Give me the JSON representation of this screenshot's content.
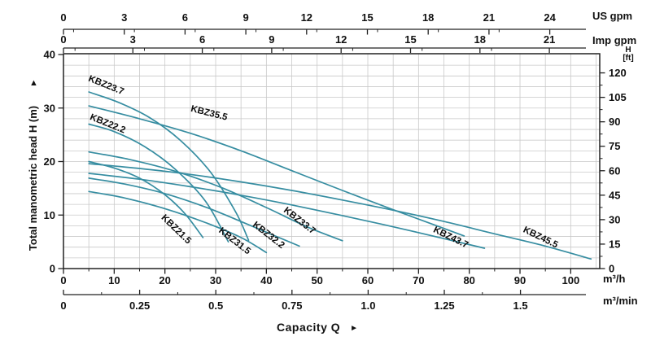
{
  "colors": {
    "curve": "#368da1",
    "grid": "#c9c9c9",
    "axis": "#222222",
    "text": "#111111"
  },
  "labels": {
    "us_gpm": "US gpm",
    "imp_gpm": "Imp gpm",
    "m3h": "m³/h",
    "m3min": "m³/min",
    "h": "H",
    "ft": "[ft]",
    "capacity": "Capacity Q",
    "capacity_arrow": "►",
    "ylabel": "Total manometric head H (m)",
    "y_arrow": "▲"
  },
  "chart_data": {
    "type": "line",
    "title": "",
    "xlabel": "Capacity Q",
    "ylabel": "Total manometric head H (m)",
    "grid": true,
    "legend_position": "none",
    "x_axes": [
      {
        "id": "us_gpm",
        "label": "US gpm",
        "ticks": [
          0,
          3,
          6,
          9,
          12,
          15,
          18,
          21,
          24
        ]
      },
      {
        "id": "imp_gpm",
        "label": "Imp gpm",
        "ticks": [
          0,
          3,
          6,
          9,
          12,
          15,
          18,
          21
        ]
      },
      {
        "id": "m3h",
        "label": "m³/h",
        "ticks": [
          0,
          10,
          20,
          30,
          40,
          50,
          60,
          70,
          80,
          90,
          100
        ],
        "range": [
          0,
          105.7
        ]
      },
      {
        "id": "m3min",
        "label": "m³/min",
        "ticks": [
          "0",
          "0.25",
          "0.5",
          "0.75",
          "1.0",
          "1.25",
          "1.5"
        ]
      }
    ],
    "y_axes": [
      {
        "id": "m",
        "label": "H (m)",
        "ticks": [
          0,
          10,
          20,
          30,
          40
        ],
        "range": [
          0,
          40
        ]
      },
      {
        "id": "ft",
        "label": "H [ft]",
        "ticks": [
          0,
          15,
          30,
          45,
          60,
          75,
          90,
          105,
          120
        ]
      }
    ],
    "series": [
      {
        "name": "KBZ21.5",
        "label_q": 19.2,
        "label_h": 9.4,
        "label_rot": 44,
        "points": [
          [
            5,
            20.0
          ],
          [
            10,
            18.8
          ],
          [
            15,
            16.9
          ],
          [
            20,
            13.8
          ],
          [
            24,
            10.2
          ],
          [
            27.5,
            5.8
          ]
        ]
      },
      {
        "name": "KBZ22.2",
        "label_q": 5.1,
        "label_h": 27.9,
        "label_rot": 22,
        "points": [
          [
            5,
            27.0
          ],
          [
            10,
            25.6
          ],
          [
            16,
            22.8
          ],
          [
            22,
            18.6
          ],
          [
            28,
            12.6
          ],
          [
            32.5,
            5.0
          ]
        ]
      },
      {
        "name": "KBZ23.7",
        "label_q": 4.8,
        "label_h": 35.1,
        "label_rot": 22,
        "points": [
          [
            5,
            33.0
          ],
          [
            11,
            31.0
          ],
          [
            17,
            28.2
          ],
          [
            23,
            24.0
          ],
          [
            29,
            18.0
          ],
          [
            34,
            10.5
          ],
          [
            36.5,
            5.3
          ]
        ]
      },
      {
        "name": "KBZ31.5",
        "label_q": 30.5,
        "label_h": 6.9,
        "label_rot": 38,
        "points": [
          [
            5,
            14.4
          ],
          [
            12,
            13.2
          ],
          [
            20,
            11.2
          ],
          [
            28,
            8.6
          ],
          [
            35,
            5.8
          ],
          [
            40,
            3.0
          ]
        ]
      },
      {
        "name": "KBZ32.2",
        "label_q": 37.2,
        "label_h": 8.0,
        "label_rot": 38,
        "points": [
          [
            5,
            16.9
          ],
          [
            12,
            15.8
          ],
          [
            20,
            14.0
          ],
          [
            28,
            11.5
          ],
          [
            36,
            8.4
          ],
          [
            42,
            6.0
          ],
          [
            46.5,
            4.2
          ]
        ]
      },
      {
        "name": "KBZ33.7",
        "label_q": 43.3,
        "label_h": 10.7,
        "label_rot": 38,
        "points": [
          [
            5,
            21.8
          ],
          [
            13,
            20.4
          ],
          [
            22,
            18.2
          ],
          [
            31,
            15.2
          ],
          [
            40,
            11.4
          ],
          [
            48,
            7.8
          ],
          [
            55,
            5.2
          ]
        ]
      },
      {
        "name": "KBZ35.5",
        "label_q": 25.0,
        "label_h": 29.4,
        "label_rot": 14,
        "points": [
          [
            5,
            30.4
          ],
          [
            15,
            28.0
          ],
          [
            25,
            25.3
          ],
          [
            35,
            22.0
          ],
          [
            45,
            18.3
          ],
          [
            55,
            14.6
          ],
          [
            65,
            11.0
          ],
          [
            73,
            8.2
          ],
          [
            79,
            6.1
          ]
        ]
      },
      {
        "name": "KBZ43.7",
        "label_q": 72.8,
        "label_h": 6.9,
        "label_rot": 26,
        "points": [
          [
            5,
            17.8
          ],
          [
            15,
            16.7
          ],
          [
            25,
            15.3
          ],
          [
            35,
            13.7
          ],
          [
            45,
            11.9
          ],
          [
            55,
            9.9
          ],
          [
            65,
            7.8
          ],
          [
            75,
            5.6
          ],
          [
            83,
            3.8
          ]
        ]
      },
      {
        "name": "KBZ45.5",
        "label_q": 90.5,
        "label_h": 6.9,
        "label_rot": 26,
        "points": [
          [
            5,
            19.6
          ],
          [
            15,
            18.7
          ],
          [
            25,
            17.6
          ],
          [
            35,
            16.2
          ],
          [
            45,
            14.6
          ],
          [
            55,
            12.8
          ],
          [
            65,
            10.9
          ],
          [
            75,
            8.8
          ],
          [
            85,
            6.5
          ],
          [
            95,
            4.2
          ],
          [
            104,
            1.8
          ]
        ]
      }
    ]
  }
}
